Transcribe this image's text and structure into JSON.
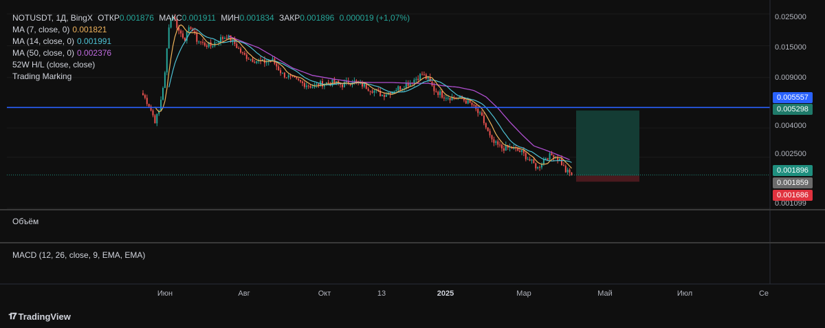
{
  "legend": {
    "symbol_line": "NOTUSDT, 1Д, BingX",
    "open_label": "ОТКР",
    "open": "0.001876",
    "high_label": "МАКС",
    "high": "0.001911",
    "low_label": "МИН",
    "low": "0.001834",
    "close_label": "ЗАКР",
    "close": "0.001896",
    "change": "0.000019 (+1,07%)",
    "ma7_label": "MA (7, close, 0)",
    "ma7_value": "0.001821",
    "ma14_label": "MA (14, close, 0)",
    "ma14_value": "0.001991",
    "ma50_label": "MA (50, close, 0)",
    "ma50_value": "0.002376",
    "hl_label": "52W H/L (close, close)",
    "marking_label": "Trading Marking"
  },
  "panes": {
    "volume_label": "Объём",
    "macd_label": "MACD (12, 26, close, 9, EMA, EMA)"
  },
  "x_axis": [
    "Июн",
    "Авг",
    "Окт",
    "13",
    "2025",
    "Мар",
    "Май",
    "Июл",
    "Се"
  ],
  "y_axis": [
    "0.025000",
    "0.015000",
    "0.009000",
    "0.004000",
    "0.002500",
    "0.001099"
  ],
  "price_badges": {
    "blue_line": "0.005557",
    "target": "0.005298",
    "last_price": "0.001896",
    "entry": "0.001859",
    "stop": "0.001686"
  },
  "colors": {
    "background": "#0f0f0f",
    "up": "#26a69a",
    "down": "#ef5350",
    "ma7": "#f0b35b",
    "ma14": "#4fc3d6",
    "ma50": "#b04fd1",
    "hline": "#2962ff",
    "profit_zone": "#143c34",
    "loss_zone": "#4a1a1e"
  },
  "branding": "TradingView",
  "chart_data": {
    "type": "candlestick",
    "symbol": "NOTUSDT",
    "timeframe": "1Д",
    "scale": "log",
    "ylim": [
      0.001099,
      0.028
    ],
    "x_ticks": [
      "Июн",
      "Авг",
      "Окт",
      "13",
      "2025",
      "Мар",
      "Май",
      "Июл",
      "Се"
    ],
    "y_ticks": [
      0.025,
      0.015,
      0.009,
      0.004,
      0.0025,
      0.001099
    ],
    "horizontal_line": 0.005557,
    "position": {
      "target": 0.005298,
      "entry": 0.001859,
      "stop": 0.001686
    },
    "close_path": [
      [
        0,
        0.0068
      ],
      [
        3,
        0.0058
      ],
      [
        6,
        0.0045
      ],
      [
        8,
        0.0052
      ],
      [
        11,
        0.0095
      ],
      [
        13,
        0.021
      ],
      [
        15,
        0.0245
      ],
      [
        18,
        0.019
      ],
      [
        21,
        0.017
      ],
      [
        24,
        0.0205
      ],
      [
        27,
        0.0165
      ],
      [
        30,
        0.0155
      ],
      [
        34,
        0.015
      ],
      [
        38,
        0.0165
      ],
      [
        42,
        0.0175
      ],
      [
        46,
        0.0155
      ],
      [
        50,
        0.013
      ],
      [
        55,
        0.012
      ],
      [
        60,
        0.0115
      ],
      [
        65,
        0.0118
      ],
      [
        70,
        0.0095
      ],
      [
        75,
        0.0088
      ],
      [
        80,
        0.0082
      ],
      [
        85,
        0.0078
      ],
      [
        90,
        0.0082
      ],
      [
        95,
        0.0083
      ],
      [
        100,
        0.008
      ],
      [
        105,
        0.0085
      ],
      [
        110,
        0.008
      ],
      [
        115,
        0.0074
      ],
      [
        120,
        0.0068
      ],
      [
        125,
        0.0073
      ],
      [
        130,
        0.0078
      ],
      [
        135,
        0.0085
      ],
      [
        140,
        0.0095
      ],
      [
        143,
        0.0087
      ],
      [
        146,
        0.0074
      ],
      [
        150,
        0.0068
      ],
      [
        155,
        0.0065
      ],
      [
        160,
        0.0064
      ],
      [
        165,
        0.0058
      ],
      [
        170,
        0.0047
      ],
      [
        175,
        0.0032
      ],
      [
        180,
        0.0029
      ],
      [
        185,
        0.0029
      ],
      [
        190,
        0.0027
      ],
      [
        195,
        0.0023
      ],
      [
        198,
        0.0021
      ],
      [
        202,
        0.0025
      ],
      [
        206,
        0.0026
      ],
      [
        209,
        0.0024
      ],
      [
        212,
        0.002
      ],
      [
        215,
        0.0019
      ]
    ],
    "ma50_path": [
      [
        43,
        0.0175
      ],
      [
        50,
        0.016
      ],
      [
        58,
        0.0145
      ],
      [
        66,
        0.0125
      ],
      [
        75,
        0.0105
      ],
      [
        85,
        0.0093
      ],
      [
        95,
        0.0088
      ],
      [
        105,
        0.0084
      ],
      [
        115,
        0.0083
      ],
      [
        125,
        0.0083
      ],
      [
        135,
        0.0082
      ],
      [
        143,
        0.0082
      ],
      [
        150,
        0.0079
      ],
      [
        158,
        0.0077
      ],
      [
        166,
        0.0073
      ],
      [
        172,
        0.0066
      ],
      [
        178,
        0.0055
      ],
      [
        184,
        0.0044
      ],
      [
        190,
        0.0036
      ],
      [
        196,
        0.003
      ],
      [
        202,
        0.0028
      ],
      [
        208,
        0.0026
      ],
      [
        214,
        0.0024
      ]
    ]
  }
}
